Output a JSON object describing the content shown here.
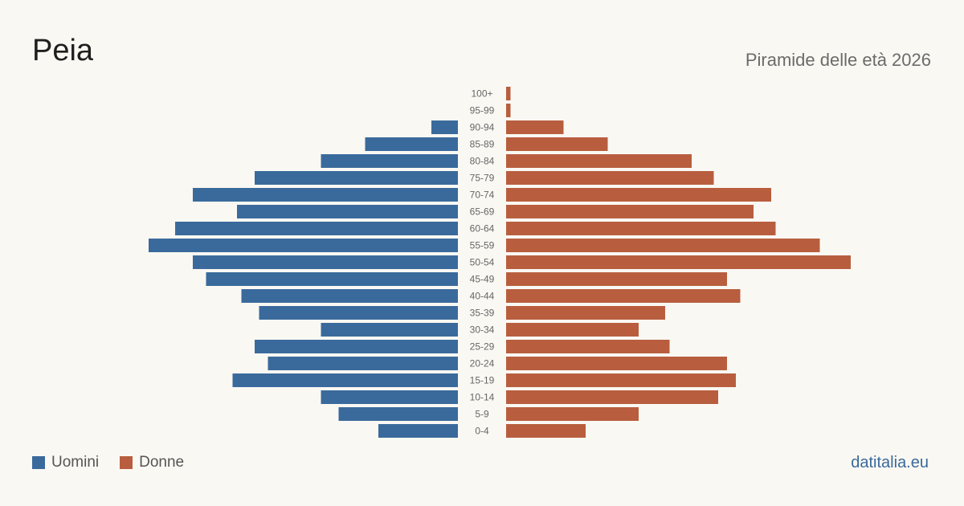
{
  "header": {
    "title": "Peia",
    "subtitle": "Piramide delle età 2026"
  },
  "legend": {
    "men_label": "Uomini",
    "women_label": "Donne"
  },
  "footer": {
    "brand": "datitalia.eu"
  },
  "colors": {
    "men": "#3a6a9c",
    "women": "#b85e3e",
    "background": "#faf8f3"
  },
  "chart_data": {
    "type": "bar",
    "orientation": "horizontal-pyramid",
    "categories": [
      "100+",
      "95-99",
      "90-94",
      "85-89",
      "80-84",
      "75-79",
      "70-74",
      "65-69",
      "60-64",
      "55-59",
      "50-54",
      "45-49",
      "40-44",
      "35-39",
      "30-34",
      "25-29",
      "20-24",
      "15-19",
      "10-14",
      "5-9",
      "0-4"
    ],
    "series": [
      {
        "name": "Uomini",
        "values": [
          0,
          0,
          6,
          21,
          31,
          46,
          60,
          50,
          64,
          70,
          60,
          57,
          49,
          45,
          31,
          46,
          43,
          51,
          31,
          27,
          18
        ]
      },
      {
        "name": "Donne",
        "values": [
          1,
          1,
          13,
          23,
          42,
          47,
          60,
          56,
          61,
          71,
          78,
          50,
          53,
          36,
          30,
          37,
          50,
          52,
          48,
          30,
          18
        ]
      }
    ],
    "title": "Peia",
    "subtitle": "Piramide delle età 2026",
    "xlabel": "",
    "ylabel": "",
    "grid": false,
    "legend": "bottom-left"
  }
}
